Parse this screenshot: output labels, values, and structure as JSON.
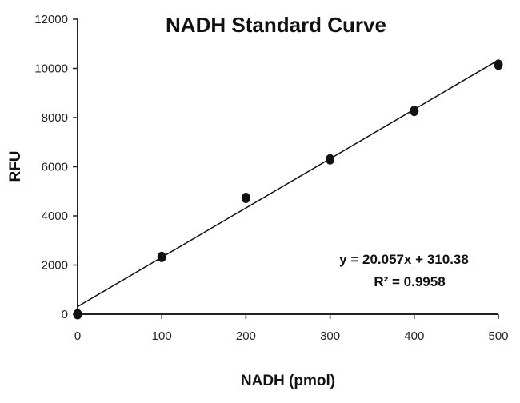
{
  "chart_data": {
    "type": "scatter",
    "title": "NADH Standard Curve",
    "xlabel": "NADH  (pmol)",
    "ylabel": "RFU",
    "xlim": [
      0,
      500
    ],
    "ylim": [
      0,
      12000
    ],
    "x_ticks": [
      0,
      100,
      200,
      300,
      400,
      500
    ],
    "y_ticks": [
      0,
      2000,
      4000,
      6000,
      8000,
      10000,
      12000
    ],
    "grid": false,
    "series": [
      {
        "x": [
          0,
          100,
          200,
          300,
          400,
          500
        ],
        "y": [
          0,
          2330,
          4730,
          6300,
          8270,
          10150
        ]
      }
    ],
    "trendline": {
      "type": "linear",
      "slope": 20.057,
      "intercept": 310.38,
      "equation": "y = 20.057x + 310.38",
      "r_squared": "R² = 0.9958"
    },
    "colors": {
      "points": "#111111",
      "line": "#111111",
      "axes": "#222222"
    }
  }
}
